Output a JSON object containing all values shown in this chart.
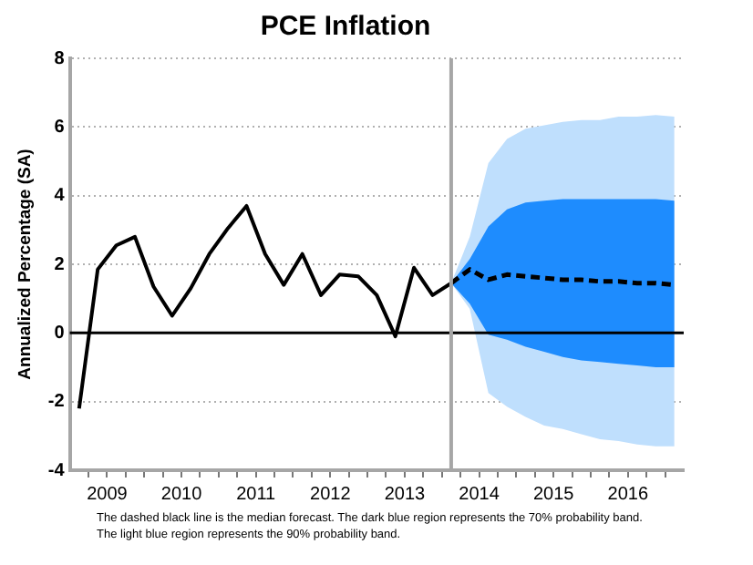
{
  "chart_data": {
    "type": "line",
    "title": "PCE Inflation",
    "ylabel": "Annualized Percentage (SA)",
    "annotations": [
      "The dashed black line is the median forecast. The dark blue region represents the 70% probability band.",
      "The light blue region represents the 90% probability band."
    ],
    "xlim": [
      2009,
      2017.25
    ],
    "xticks": [
      {
        "value": 2009.25,
        "label": null
      },
      {
        "value": 2009.5,
        "label": "2009"
      },
      {
        "value": 2009.75,
        "label": null
      },
      {
        "value": 2010,
        "label": null
      },
      {
        "value": 2010.25,
        "label": null
      },
      {
        "value": 2010.5,
        "label": "2010"
      },
      {
        "value": 2010.75,
        "label": null
      },
      {
        "value": 2011,
        "label": null
      },
      {
        "value": 2011.25,
        "label": null
      },
      {
        "value": 2011.5,
        "label": "2011"
      },
      {
        "value": 2011.75,
        "label": null
      },
      {
        "value": 2012,
        "label": null
      },
      {
        "value": 2012.25,
        "label": null
      },
      {
        "value": 2012.5,
        "label": "2012"
      },
      {
        "value": 2012.75,
        "label": null
      },
      {
        "value": 2013,
        "label": null
      },
      {
        "value": 2013.25,
        "label": null
      },
      {
        "value": 2013.5,
        "label": "2013"
      },
      {
        "value": 2013.75,
        "label": null
      },
      {
        "value": 2014,
        "label": null
      },
      {
        "value": 2014.25,
        "label": null
      },
      {
        "value": 2014.5,
        "label": "2014"
      },
      {
        "value": 2014.75,
        "label": null
      },
      {
        "value": 2015,
        "label": null
      },
      {
        "value": 2015.25,
        "label": null
      },
      {
        "value": 2015.5,
        "label": "2015"
      },
      {
        "value": 2015.75,
        "label": null
      },
      {
        "value": 2016,
        "label": null
      },
      {
        "value": 2016.25,
        "label": null
      },
      {
        "value": 2016.5,
        "label": "2016"
      },
      {
        "value": 2016.75,
        "label": null
      },
      {
        "value": 2017,
        "label": null
      }
    ],
    "ylim": [
      -4,
      8
    ],
    "yticks": [
      -4,
      -2,
      0,
      2,
      4,
      6,
      8
    ],
    "grid": "y",
    "legend": false,
    "marker": "none",
    "ref_lines": [
      {
        "axis": "y",
        "value": 0,
        "label": null,
        "color": "#000000"
      },
      {
        "axis": "x",
        "value": 2014.125,
        "label": null,
        "color": "#a6a6a6"
      }
    ],
    "series": [
      {
        "color": "#000000",
        "line_style": "solid",
        "x": [
          2009.125,
          2009.375,
          2009.625,
          2009.875,
          2010.125,
          2010.375,
          2010.625,
          2010.875,
          2011.125,
          2011.375,
          2011.625,
          2011.875,
          2012.125,
          2012.375,
          2012.625,
          2012.875,
          2013.125,
          2013.375,
          2013.625,
          2013.875,
          2014.125
        ],
        "values": [
          -2.2,
          1.85,
          2.55,
          2.8,
          1.35,
          0.5,
          1.3,
          2.3,
          3.05,
          3.7,
          2.3,
          1.4,
          2.3,
          1.1,
          1.7,
          1.65,
          1.1,
          -0.1,
          1.9,
          1.1,
          1.45
        ]
      },
      {
        "type": "area",
        "color": "#bfdffd",
        "x": [
          2014.125,
          2014.375,
          2014.625,
          2014.875,
          2015.125,
          2015.375,
          2015.625,
          2015.875,
          2016.125,
          2016.375,
          2016.625,
          2016.875,
          2017.125
        ],
        "values": [
          null,
          null,
          null,
          null,
          null,
          null,
          null,
          null,
          null,
          null,
          null,
          null,
          null
        ],
        "lower": [
          1.45,
          0.7,
          -1.75,
          -2.15,
          -2.45,
          -2.7,
          -2.8,
          -2.95,
          -3.1,
          -3.15,
          -3.25,
          -3.3,
          -3.3
        ],
        "upper": [
          1.45,
          2.8,
          4.95,
          5.65,
          5.95,
          6.05,
          6.15,
          6.2,
          6.2,
          6.3,
          6.3,
          6.35,
          6.3
        ]
      },
      {
        "type": "area",
        "color": "#1e8cfe",
        "x": [
          2014.125,
          2014.375,
          2014.625,
          2014.875,
          2015.125,
          2015.375,
          2015.625,
          2015.875,
          2016.125,
          2016.375,
          2016.625,
          2016.875,
          2017.125
        ],
        "values": [
          null,
          null,
          null,
          null,
          null,
          null,
          null,
          null,
          null,
          null,
          null,
          null,
          null
        ],
        "lower": [
          1.45,
          0.85,
          -0.05,
          -0.2,
          -0.4,
          -0.55,
          -0.7,
          -0.8,
          -0.85,
          -0.9,
          -0.95,
          -1,
          -1
        ],
        "upper": [
          1.45,
          2.15,
          3.1,
          3.6,
          3.8,
          3.85,
          3.9,
          3.9,
          3.9,
          3.9,
          3.9,
          3.9,
          3.85
        ]
      },
      {
        "color": "#000000",
        "line_style": "dashed",
        "x": [
          2014.125,
          2014.375,
          2014.625,
          2014.875,
          2015.125,
          2015.375,
          2015.625,
          2015.875,
          2016.125,
          2016.375,
          2016.625,
          2016.875,
          2017.125
        ],
        "values": [
          1.45,
          1.85,
          1.55,
          1.7,
          1.65,
          1.6,
          1.55,
          1.55,
          1.5,
          1.5,
          1.45,
          1.45,
          1.4
        ]
      }
    ]
  }
}
